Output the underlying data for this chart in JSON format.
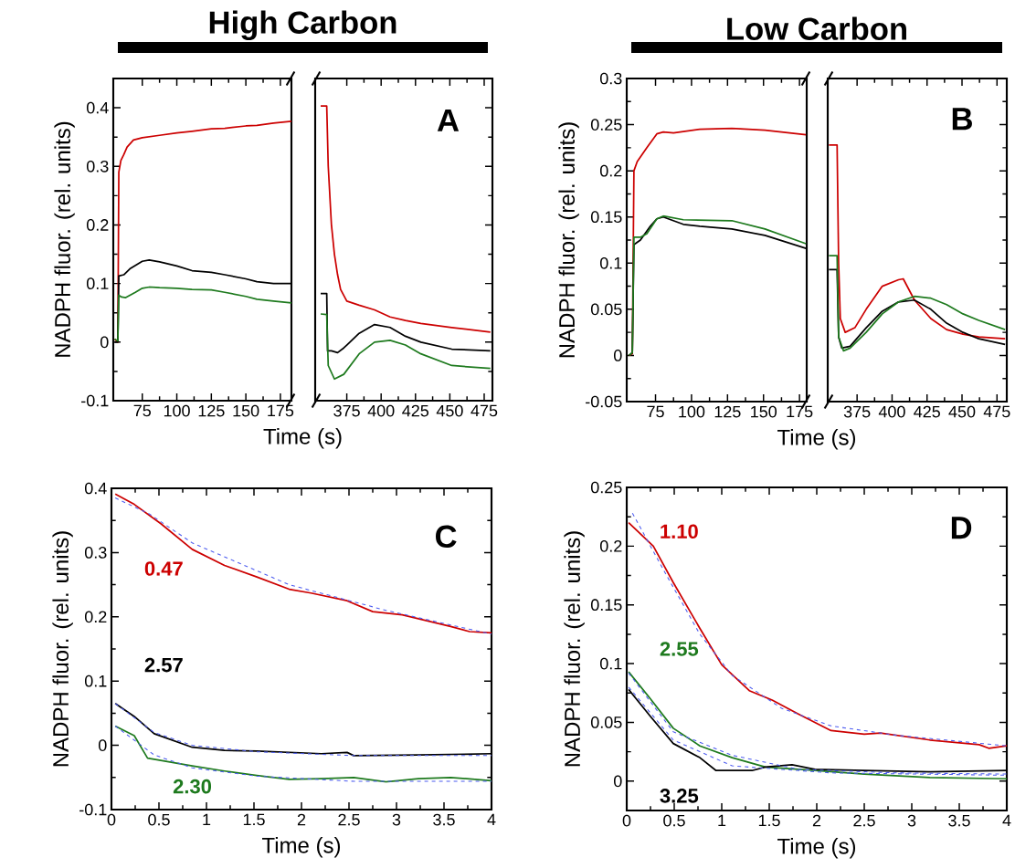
{
  "chart_data": [
    {
      "type": "line",
      "title": "High Carbon",
      "xlabel": "Time (s)",
      "ylabel": "NADPH fluor. (rel. units)",
      "xlim": [
        54,
        183
      ],
      "ylim": [
        -0.1,
        0.45
      ],
      "xticks": [
        75,
        100,
        125,
        150,
        175
      ],
      "yticks": [
        -0.1,
        0,
        0.1,
        0.2,
        0.3,
        0.4
      ],
      "series": [
        {
          "color": "#cc0000",
          "x": [
            55,
            57.3,
            58,
            59.5,
            61.6,
            64,
            68.6,
            75,
            87.5,
            100,
            111,
            125,
            134.7,
            150,
            158,
            170,
            183
          ],
          "values": [
            0.005,
            0.0,
            0.29,
            0.31,
            0.32,
            0.333,
            0.345,
            0.349,
            0.353,
            0.357,
            0.36,
            0.364,
            0.365,
            0.369,
            0.37,
            0.374,
            0.377
          ]
        },
        {
          "color": "#000000",
          "x": [
            55,
            57.3,
            58,
            61.6,
            66,
            75,
            80,
            87.5,
            100,
            111,
            125,
            134.7,
            150,
            158,
            170,
            183
          ],
          "values": [
            0.0,
            0.0,
            0.113,
            0.115,
            0.125,
            0.138,
            0.14,
            0.137,
            0.13,
            0.122,
            0.119,
            0.115,
            0.108,
            0.103,
            0.1,
            0.1
          ]
        },
        {
          "color": "#1e7a1e",
          "x": [
            55,
            57.3,
            58,
            60,
            63,
            70,
            75,
            80,
            87.5,
            100,
            111,
            125,
            134.7,
            150,
            158,
            170,
            183
          ],
          "values": [
            0.005,
            0.002,
            0.08,
            0.077,
            0.076,
            0.085,
            0.092,
            0.094,
            0.093,
            0.092,
            0.09,
            0.089,
            0.085,
            0.078,
            0.073,
            0.07,
            0.067
          ]
        }
      ]
    },
    {
      "type": "line",
      "xlim": [
        352,
        481
      ],
      "ylim": [
        -0.1,
        0.45
      ],
      "xticks": [
        375,
        400,
        425,
        450,
        475
      ],
      "yticks": [
        -0.1,
        0,
        0.1,
        0.2,
        0.3,
        0.4
      ],
      "tick_labels": "x",
      "annotations": [
        "A"
      ],
      "series": [
        {
          "color": "#cc0000",
          "x": [
            356,
            360.4,
            361.5,
            363.8,
            366,
            368.3,
            370.5,
            375,
            384,
            395.2,
            406.5,
            417.7,
            428.9,
            451.4,
            479.5
          ],
          "values": [
            0.403,
            0.403,
            0.3,
            0.201,
            0.15,
            0.115,
            0.09,
            0.07,
            0.063,
            0.055,
            0.043,
            0.037,
            0.032,
            0.025,
            0.017
          ]
        },
        {
          "color": "#000000",
          "x": [
            356,
            360.4,
            361,
            363.8,
            368.3,
            372.8,
            375,
            384,
            395.2,
            406.5,
            417.7,
            428.9,
            451.4,
            479.5
          ],
          "values": [
            0.083,
            0.083,
            -0.015,
            -0.015,
            -0.018,
            -0.01,
            -0.005,
            0.015,
            0.03,
            0.025,
            0.01,
            0.0,
            -0.012,
            -0.015
          ]
        },
        {
          "color": "#1e7a1e",
          "x": [
            356,
            360.4,
            361.5,
            366,
            372.8,
            384,
            395.2,
            406.5,
            417.7,
            428.9,
            451.4,
            479.5
          ],
          "values": [
            0.048,
            0.047,
            -0.04,
            -0.063,
            -0.055,
            -0.02,
            0.0,
            0.003,
            -0.005,
            -0.02,
            -0.04,
            -0.045
          ]
        }
      ]
    },
    {
      "type": "line",
      "title": "Low Carbon",
      "xlabel": "Time (s)",
      "ylabel": "NADPH fluor. (rel. units)",
      "xlim": [
        55,
        180
      ],
      "ylim": [
        -0.05,
        0.3
      ],
      "xticks": [
        75,
        100,
        125,
        150,
        175
      ],
      "yticks": [
        -0.05,
        0,
        0.05,
        0.1,
        0.15,
        0.2,
        0.25,
        0.3
      ],
      "series": [
        {
          "color": "#cc0000",
          "x": [
            56.6,
            58.9,
            60,
            62.3,
            69,
            75.9,
            80.4,
            87.5,
            105.7,
            128,
            151,
            179.5
          ],
          "values": [
            0.0,
            0.002,
            0.2,
            0.21,
            0.225,
            0.24,
            0.242,
            0.241,
            0.245,
            0.246,
            0.244,
            0.239
          ]
        },
        {
          "color": "#000000",
          "x": [
            56.6,
            58.9,
            60,
            64.5,
            71.4,
            75.9,
            80.4,
            94.3,
            105.7,
            128,
            151,
            179.5
          ],
          "values": [
            0.0,
            0.003,
            0.12,
            0.125,
            0.14,
            0.148,
            0.15,
            0.142,
            0.14,
            0.137,
            0.13,
            0.116
          ]
        },
        {
          "color": "#1e7a1e",
          "x": [
            56.6,
            58.9,
            60,
            64.5,
            69,
            75.9,
            80.4,
            94.3,
            128,
            151,
            179.5
          ],
          "values": [
            0.0,
            0.003,
            0.128,
            0.128,
            0.132,
            0.148,
            0.151,
            0.147,
            0.146,
            0.137,
            0.121
          ]
        }
      ]
    },
    {
      "type": "line",
      "xlim": [
        354,
        482
      ],
      "ylim": [
        -0.05,
        0.3
      ],
      "xticks": [
        375,
        400,
        425,
        450,
        475
      ],
      "yticks": [
        -0.05,
        0,
        0.05,
        0.1,
        0.15,
        0.2,
        0.25,
        0.3
      ],
      "tick_labels": "x",
      "annotations": [
        "B"
      ],
      "series": [
        {
          "color": "#cc0000",
          "x": [
            354.9,
            360.7,
            361.8,
            363,
            366.5,
            373.4,
            381.5,
            393,
            404.6,
            408,
            416,
            427.7,
            439,
            450.7,
            462,
            480.8
          ],
          "values": [
            0.228,
            0.228,
            0.1,
            0.04,
            0.025,
            0.03,
            0.05,
            0.075,
            0.082,
            0.083,
            0.06,
            0.04,
            0.028,
            0.023,
            0.02,
            0.018
          ]
        },
        {
          "color": "#000000",
          "x": [
            354.9,
            360.7,
            361.8,
            364,
            370,
            381.5,
            393,
            404.6,
            416,
            427.7,
            439,
            450.7,
            462,
            480.8
          ],
          "values": [
            0.093,
            0.093,
            0.02,
            0.008,
            0.01,
            0.03,
            0.048,
            0.058,
            0.06,
            0.05,
            0.035,
            0.025,
            0.018,
            0.012
          ]
        },
        {
          "color": "#1e7a1e",
          "x": [
            354.9,
            360.7,
            361.8,
            365.3,
            370,
            381.5,
            393,
            404.6,
            416,
            427.7,
            439,
            450.7,
            462,
            480.8
          ],
          "values": [
            0.108,
            0.108,
            0.02,
            0.005,
            0.008,
            0.025,
            0.045,
            0.058,
            0.064,
            0.062,
            0.055,
            0.045,
            0.038,
            0.028
          ]
        }
      ]
    },
    {
      "type": "line",
      "xlabel": "Time (s)",
      "ylabel": "NADPH fluor. (rel. units)",
      "xlim": [
        0,
        4
      ],
      "ylim": [
        -0.1,
        0.4
      ],
      "xticks": [
        0,
        0.5,
        1,
        1.5,
        2,
        2.5,
        3,
        3.5,
        4
      ],
      "yticks": [
        -0.1,
        0,
        0.1,
        0.2,
        0.3,
        0.4
      ],
      "annotations": [
        "C"
      ],
      "series": [
        {
          "name": "0.47",
          "color": "#cc0000",
          "x": [
            0.04,
            0.24,
            0.52,
            0.85,
            1.19,
            1.53,
            1.87,
            2.1,
            2.48,
            2.75,
            3.06,
            3.23,
            3.57,
            3.77,
            4.0
          ],
          "values": [
            0.391,
            0.375,
            0.345,
            0.305,
            0.28,
            0.262,
            0.243,
            0.237,
            0.225,
            0.208,
            0.203,
            0.197,
            0.185,
            0.177,
            0.175
          ]
        },
        {
          "name": "2.57",
          "color": "#000000",
          "x": [
            0.04,
            0.24,
            0.45,
            0.85,
            1.19,
            1.53,
            2.21,
            2.48,
            2.55,
            3.23,
            4.0
          ],
          "values": [
            0.065,
            0.045,
            0.018,
            -0.003,
            -0.008,
            -0.009,
            -0.013,
            -0.011,
            -0.016,
            -0.015,
            -0.013
          ]
        },
        {
          "name": "2.30",
          "color": "#1e7a1e",
          "x": [
            0.04,
            0.24,
            0.38,
            0.85,
            1.19,
            1.53,
            1.87,
            2.21,
            2.55,
            2.89,
            3.23,
            3.57,
            4.0
          ],
          "values": [
            0.03,
            0.015,
            -0.02,
            -0.032,
            -0.04,
            -0.047,
            -0.053,
            -0.052,
            -0.05,
            -0.057,
            -0.052,
            -0.05,
            -0.055
          ]
        },
        {
          "color": "#4d5cf0",
          "line_style": "dashed",
          "x": [
            0.04,
            0.4,
            0.85,
            1.87,
            2.89,
            4.0
          ],
          "values": [
            0.385,
            0.36,
            0.315,
            0.25,
            0.21,
            0.173
          ]
        },
        {
          "color": "#4d5cf0",
          "line_style": "dashed",
          "x": [
            0.04,
            0.45,
            0.85,
            1.53,
            2.55,
            4.0
          ],
          "values": [
            0.065,
            0.02,
            0.0,
            -0.01,
            -0.016,
            -0.016
          ]
        },
        {
          "color": "#4d5cf0",
          "line_style": "dashed",
          "x": [
            0.04,
            0.45,
            0.85,
            1.53,
            2.55,
            4.0
          ],
          "values": [
            0.03,
            -0.015,
            -0.035,
            -0.048,
            -0.056,
            -0.056
          ]
        }
      ]
    },
    {
      "type": "line",
      "xlabel": "Time (s)",
      "ylabel": "NADPH fluor. (rel. units)",
      "xlim": [
        0,
        4
      ],
      "ylim": [
        -0.025,
        0.25
      ],
      "xticks": [
        0,
        0.5,
        1,
        1.5,
        2,
        2.5,
        3,
        3.5,
        4
      ],
      "yticks": [
        0,
        0.05,
        0.1,
        0.15,
        0.2,
        0.25
      ],
      "annotations": [
        "D"
      ],
      "series": [
        {
          "name": "1.10",
          "color": "#cc0000",
          "x": [
            0.02,
            0.28,
            0.49,
            0.77,
            1.0,
            1.29,
            1.53,
            1.81,
            2.15,
            2.5,
            2.67,
            3.19,
            3.71,
            3.81,
            4.0
          ],
          "values": [
            0.22,
            0.2,
            0.169,
            0.13,
            0.099,
            0.077,
            0.069,
            0.057,
            0.043,
            0.04,
            0.041,
            0.035,
            0.031,
            0.028,
            0.03
          ]
        },
        {
          "name": "2.55",
          "color": "#1e7a1e",
          "x": [
            0.02,
            0.25,
            0.49,
            0.77,
            1.11,
            1.46,
            1.98,
            2.5,
            3.19,
            4.0
          ],
          "values": [
            0.093,
            0.07,
            0.045,
            0.03,
            0.02,
            0.012,
            0.009,
            0.006,
            0.003,
            0.002
          ]
        },
        {
          "name": "3.25",
          "color": "#000000",
          "x": [
            0.02,
            0.25,
            0.49,
            0.77,
            0.94,
            1.32,
            1.46,
            1.74,
            1.98,
            2.5,
            3.19,
            4.0
          ],
          "values": [
            0.078,
            0.055,
            0.032,
            0.02,
            0.009,
            0.009,
            0.012,
            0.014,
            0.01,
            0.009,
            0.008,
            0.009
          ]
        },
        {
          "color": "#4d5cf0",
          "line_style": "dashed",
          "x": [
            0.06,
            0.42,
            0.77,
            1.11,
            1.63,
            2.15,
            2.84,
            4.0
          ],
          "values": [
            0.228,
            0.175,
            0.125,
            0.09,
            0.062,
            0.047,
            0.039,
            0.03
          ]
        },
        {
          "color": "#4d5cf0",
          "line_style": "dashed",
          "x": [
            0.02,
            0.49,
            1.11,
            2.15,
            4.0
          ],
          "values": [
            0.08,
            0.035,
            0.013,
            0.007,
            0.005
          ]
        },
        {
          "color": "#4d5cf0",
          "line_style": "dashed",
          "x": [
            0.02,
            0.49,
            1.11,
            1.81,
            2.84,
            4.0
          ],
          "values": [
            0.092,
            0.042,
            0.022,
            0.01,
            0.007,
            0.006
          ]
        }
      ]
    }
  ]
}
